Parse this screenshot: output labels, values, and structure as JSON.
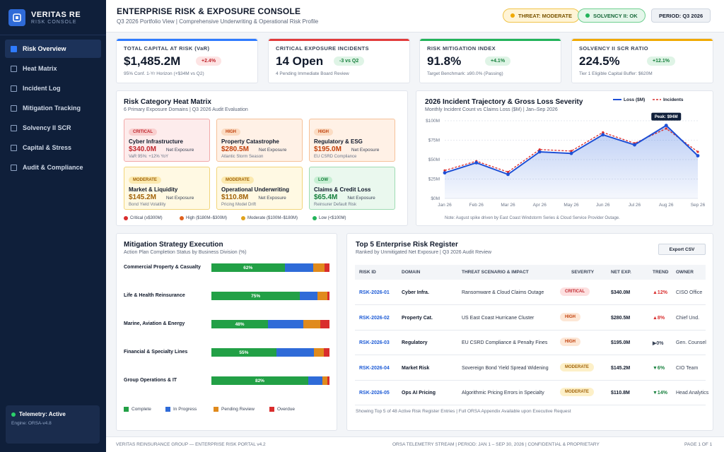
{
  "brand": {
    "name": "VERITAS RE",
    "sub": "RISK CONSOLE"
  },
  "nav": [
    {
      "label": "Risk Overview",
      "active": true
    },
    {
      "label": "Heat Matrix"
    },
    {
      "label": "Incident Log"
    },
    {
      "label": "Mitigation Tracking"
    },
    {
      "label": "Solvency II SCR"
    },
    {
      "label": "Capital & Stress"
    },
    {
      "label": "Audit & Compliance"
    }
  ],
  "telemetry": {
    "status": "Telemetry: Active",
    "engine": "Engine: ORSA-v4.8"
  },
  "header": {
    "title": "ENTERPRISE RISK & EXPOSURE CONSOLE",
    "subtitle": "Q3 2026 Portfolio View | Comprehensive Underwriting & Operational Risk Profile",
    "threat": "THREAT: MODERATE",
    "solvency": "SOLVENCY II: OK",
    "period": "PERIOD: Q3 2026"
  },
  "kpis": [
    {
      "title": "TOTAL CAPITAL AT RISK (VaR)",
      "value": "$1,485.2M",
      "delta": "+2.4%",
      "note": "95% Conf. 1-Yr Horizon (+$34M vs Q2)",
      "color": "#2f7bff",
      "delta_bg": "#fde4e4",
      "delta_fg": "#c0262d"
    },
    {
      "title": "CRITICAL EXPOSURE INCIDENTS",
      "value": "14 Open",
      "delta": "-3 vs Q2",
      "note": "4 Pending Immediate Board Review",
      "color": "#e23b3b",
      "delta_bg": "#dff4e6",
      "delta_fg": "#17803d"
    },
    {
      "title": "RISK MITIGATION INDEX",
      "value": "91.8%",
      "delta": "+4.1%",
      "note": "Target Benchmark: ≥90.0% (Passing)",
      "color": "#22b35a",
      "delta_bg": "#dff4e6",
      "delta_fg": "#17803d"
    },
    {
      "title": "SOLVENCY II SCR RATIO",
      "value": "224.5%",
      "delta": "+12.1%",
      "note": "Tier 1 Eligible Capital Buffer: $620M",
      "color": "#f0a900",
      "delta_bg": "#dff4e6",
      "delta_fg": "#17803d"
    }
  ],
  "heat": {
    "title": "Risk Category Heat Matrix",
    "subtitle": "6 Primary Exposure Domains | Q3 2026 Audit Evaluation",
    "exposure_label": "Net Exposure",
    "tiles": [
      {
        "sev": "CRITICAL",
        "name": "Cyber Infrastructure",
        "amount": "$340.0M",
        "note": "VaR 95%: +12% YoY",
        "bg": "#fdecec",
        "border": "#f2a9a9",
        "badge_bg": "#f9cfcf",
        "fg": "#c0262d"
      },
      {
        "sev": "HIGH",
        "name": "Property Catastrophe",
        "amount": "$280.5M",
        "note": "Atlantic Storm Season",
        "bg": "#fff1e6",
        "border": "#f6c199",
        "badge_bg": "#fbdcc3",
        "fg": "#c2410c"
      },
      {
        "sev": "HIGH",
        "name": "Regulatory & ESG",
        "amount": "$195.0M",
        "note": "EU CSRD Compliance",
        "bg": "#fff1e6",
        "border": "#f6c199",
        "badge_bg": "#fbdcc3",
        "fg": "#c2410c"
      },
      {
        "sev": "MODERATE",
        "name": "Market & Liquidity",
        "amount": "$145.2M",
        "note": "Bond Yield Volatility",
        "bg": "#fff9e3",
        "border": "#f2d57a",
        "badge_bg": "#fbe9ae",
        "fg": "#a16207"
      },
      {
        "sev": "MODERATE",
        "name": "Operational Underwriting",
        "amount": "$110.8M",
        "note": "Pricing Model Drift",
        "bg": "#fff9e3",
        "border": "#f2d57a",
        "badge_bg": "#fbe9ae",
        "fg": "#a16207"
      },
      {
        "sev": "LOW",
        "name": "Claims & Credit Loss",
        "amount": "$65.4M",
        "note": "Reinsurer Default Risk",
        "bg": "#eaf8ee",
        "border": "#9edcb2",
        "badge_bg": "#c7eed3",
        "fg": "#17803d"
      }
    ],
    "legend": [
      {
        "label": "Critical (≥$300M)",
        "color": "#d92d2d"
      },
      {
        "label": "High ($180M–$300M)",
        "color": "#e0611c"
      },
      {
        "label": "Moderate ($100M–$180M)",
        "color": "#e0a21c"
      },
      {
        "label": "Low (<$100M)",
        "color": "#22b35a"
      }
    ]
  },
  "trajectory": {
    "title": "2026 Incident Trajectory & Gross Loss Severity",
    "subtitle": "Monthly Incident Count vs Claims Loss ($M) | Jan–Sep 2026",
    "legend_loss": "Loss ($M)",
    "legend_incidents": "Incidents",
    "peak_label": "Peak: $94M",
    "footnote": "Note: August spike driven by East Coast Windstorm Series & Cloud Service Provider Outage."
  },
  "chart_data": {
    "type": "line",
    "title": "2026 Incident Trajectory & Gross Loss Severity",
    "x": [
      "Jan 26",
      "Feb 26",
      "Mar 26",
      "Apr 26",
      "May 26",
      "Jun 26",
      "Jul 26",
      "Aug 26",
      "Sep 26"
    ],
    "yticks": [
      "$0M",
      "$25M",
      "$50M",
      "$75M",
      "$100M"
    ],
    "ylim": [
      0,
      100
    ],
    "series": [
      {
        "name": "Loss ($M)",
        "values": [
          33,
          46,
          31,
          60,
          58,
          82,
          69,
          94,
          55
        ],
        "color": "#1d4fd6"
      },
      {
        "name": "Incidents",
        "values": [
          36,
          48,
          34,
          63,
          61,
          85,
          71,
          90,
          60
        ],
        "color": "#d92d2d"
      }
    ],
    "grid": true,
    "legend": "top-right"
  },
  "mitigation": {
    "title": "Mitigation Strategy Execution",
    "subtitle": "Action Plan Completion Status by Business Division (%)",
    "rows": [
      {
        "label": "Commercial Property & Casualty",
        "segments": [
          62,
          24,
          10,
          4
        ],
        "text": "62%"
      },
      {
        "label": "Life & Health Reinsurance",
        "segments": [
          75,
          15,
          8,
          2
        ],
        "text": "75%"
      },
      {
        "label": "Marine, Aviation & Energy",
        "segments": [
          48,
          30,
          14,
          8
        ],
        "text": "48%"
      },
      {
        "label": "Financial & Specialty Lines",
        "segments": [
          55,
          32,
          8,
          5
        ],
        "text": "55%"
      },
      {
        "label": "Group Operations & IT",
        "segments": [
          82,
          12,
          4,
          2
        ],
        "text": "82%"
      }
    ],
    "legend": [
      {
        "label": "Complete",
        "color": "#22a046"
      },
      {
        "label": "In Progress",
        "color": "#2f6bd8"
      },
      {
        "label": "Pending Review",
        "color": "#e08a1c"
      },
      {
        "label": "Overdue",
        "color": "#d92d2d"
      }
    ]
  },
  "register": {
    "title": "Top 5 Enterprise Risk Register",
    "subtitle": "Ranked by Unmitigated Net Exposure | Q3 2026 Audit Review",
    "export_label": "Export CSV",
    "columns": [
      "RISK ID",
      "DOMAIN",
      "THREAT SCENARIO & IMPACT",
      "SEVERITY",
      "NET EXP.",
      "TREND",
      "OWNER"
    ],
    "rows": [
      {
        "id": "RSK-2026-01",
        "domain": "Cyber Infra.",
        "scenario": "Ransomware & Cloud Claims Outage",
        "sev": "CRITICAL",
        "net": "$340.0M",
        "trend": "▲12%",
        "trend_color": "#d92d2d",
        "owner": "CISO Office",
        "sev_bg": "#fde0e0",
        "sev_fg": "#c0262d"
      },
      {
        "id": "RSK-2026-02",
        "domain": "Property Cat.",
        "scenario": "US East Coast Hurricane Cluster",
        "sev": "HIGH",
        "net": "$280.5M",
        "trend": "▲8%",
        "trend_color": "#d92d2d",
        "owner": "Chief Und.",
        "sev_bg": "#fde7d6",
        "sev_fg": "#c2410c"
      },
      {
        "id": "RSK-2026-03",
        "domain": "Regulatory",
        "scenario": "EU CSRD Compliance & Penalty Fines",
        "sev": "HIGH",
        "net": "$195.0M",
        "trend": "▶0%",
        "trend_color": "#3b4558",
        "owner": "Gen. Counsel",
        "sev_bg": "#fde7d6",
        "sev_fg": "#c2410c"
      },
      {
        "id": "RSK-2026-04",
        "domain": "Market Risk",
        "scenario": "Sovereign Bond Yield Spread Widening",
        "sev": "MODERATE",
        "net": "$145.2M",
        "trend": "▼6%",
        "trend_color": "#17803d",
        "owner": "CIO Team",
        "sev_bg": "#fdf0c8",
        "sev_fg": "#a16207"
      },
      {
        "id": "RSK-2026-05",
        "domain": "Ops AI Pricing",
        "scenario": "Algorithmic Pricing Errors in Specialty",
        "sev": "MODERATE",
        "net": "$110.8M",
        "trend": "▼14%",
        "trend_color": "#17803d",
        "owner": "Head Analytics",
        "sev_bg": "#fdf0c8",
        "sev_fg": "#a16207"
      }
    ],
    "footnote": "Showing Top 5 of 48 Active Risk Register Entries | Full ORSA Appendix Available upon Executive Request"
  },
  "footer": {
    "left": "VERITAS REINSURANCE GROUP — ENTERPRISE RISK PORTAL v4.2",
    "right": "ORSA TELEMETRY STREAM | PERIOD: JAN 1 – SEP 30, 2026 | CONFIDENTIAL & PROPRIETARY",
    "page": "PAGE 1 OF 1"
  }
}
